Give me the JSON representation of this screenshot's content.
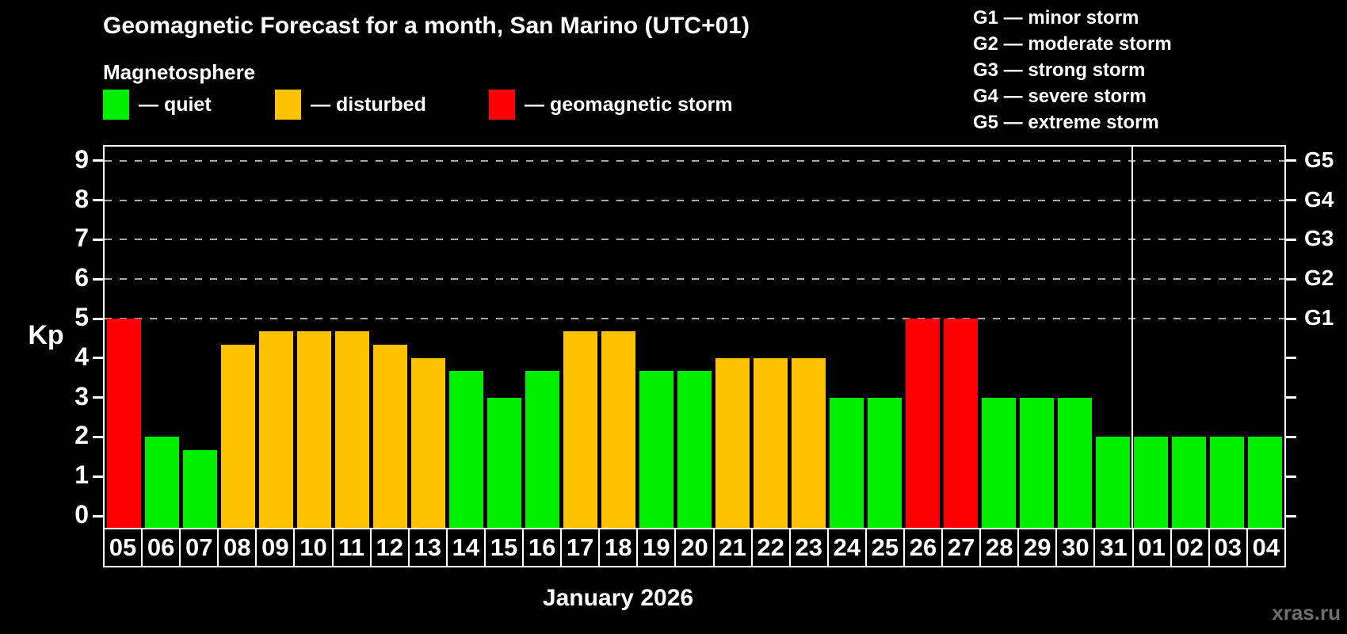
{
  "header": {
    "title": "Geomagnetic Forecast for a month, San Marino (UTC+01)",
    "subtitle": "Magnetosphere",
    "legend": [
      {
        "id": "quiet",
        "label": "— quiet",
        "color": "#00ee00"
      },
      {
        "id": "disturbed",
        "label": "— disturbed",
        "color": "#ffc200"
      },
      {
        "id": "storm",
        "label": "— geomagnetic storm",
        "color": "#ff0000"
      }
    ],
    "g_scale_legend": [
      "G1 — minor storm",
      "G2 — moderate storm",
      "G3 — strong storm",
      "G4 — severe storm",
      "G5 — extreme storm"
    ]
  },
  "chart_data": {
    "type": "bar",
    "title": "Geomagnetic Forecast for a month, San Marino (UTC+01)",
    "ylabel": "Kp",
    "xlabel": "January 2026",
    "ylim": [
      0,
      9
    ],
    "yticks": [
      0,
      1,
      2,
      3,
      4,
      5,
      6,
      7,
      8,
      9
    ],
    "grid": "horizontal dashed lines only at Kp 5-9 (G1-G5)",
    "gridline_levels": [
      5,
      6,
      7,
      8,
      9
    ],
    "legend_position": "top-left",
    "right_axis_labels": [
      {
        "kp": 5,
        "label": "G1"
      },
      {
        "kp": 6,
        "label": "G2"
      },
      {
        "kp": 7,
        "label": "G3"
      },
      {
        "kp": 8,
        "label": "G4"
      },
      {
        "kp": 9,
        "label": "G5"
      }
    ],
    "categories": [
      "05",
      "06",
      "07",
      "08",
      "09",
      "10",
      "11",
      "12",
      "13",
      "14",
      "15",
      "16",
      "17",
      "18",
      "19",
      "20",
      "21",
      "22",
      "23",
      "24",
      "25",
      "26",
      "27",
      "28",
      "29",
      "30",
      "31",
      "01",
      "02",
      "03",
      "04"
    ],
    "values": [
      5.0,
      2.0,
      1.67,
      4.33,
      4.67,
      4.67,
      4.67,
      4.33,
      4.0,
      3.67,
      3.0,
      3.67,
      4.67,
      4.67,
      3.67,
      3.67,
      4.0,
      4.0,
      4.0,
      3.0,
      3.0,
      5.0,
      5.0,
      3.0,
      3.0,
      3.0,
      2.0,
      2.0,
      2.0,
      2.0,
      2.0
    ],
    "status": [
      "storm",
      "quiet",
      "quiet",
      "disturbed",
      "disturbed",
      "disturbed",
      "disturbed",
      "disturbed",
      "disturbed",
      "quiet",
      "quiet",
      "quiet",
      "disturbed",
      "disturbed",
      "quiet",
      "quiet",
      "disturbed",
      "disturbed",
      "disturbed",
      "quiet",
      "quiet",
      "storm",
      "storm",
      "quiet",
      "quiet",
      "quiet",
      "quiet",
      "quiet",
      "quiet",
      "quiet",
      "quiet"
    ],
    "status_colors": {
      "quiet": "#00ee00",
      "disturbed": "#ffc200",
      "storm": "#ff0000"
    },
    "month_separator_after_index": 26
  },
  "footer": {
    "month_label": "January 2026",
    "watermark": "xras.ru"
  }
}
